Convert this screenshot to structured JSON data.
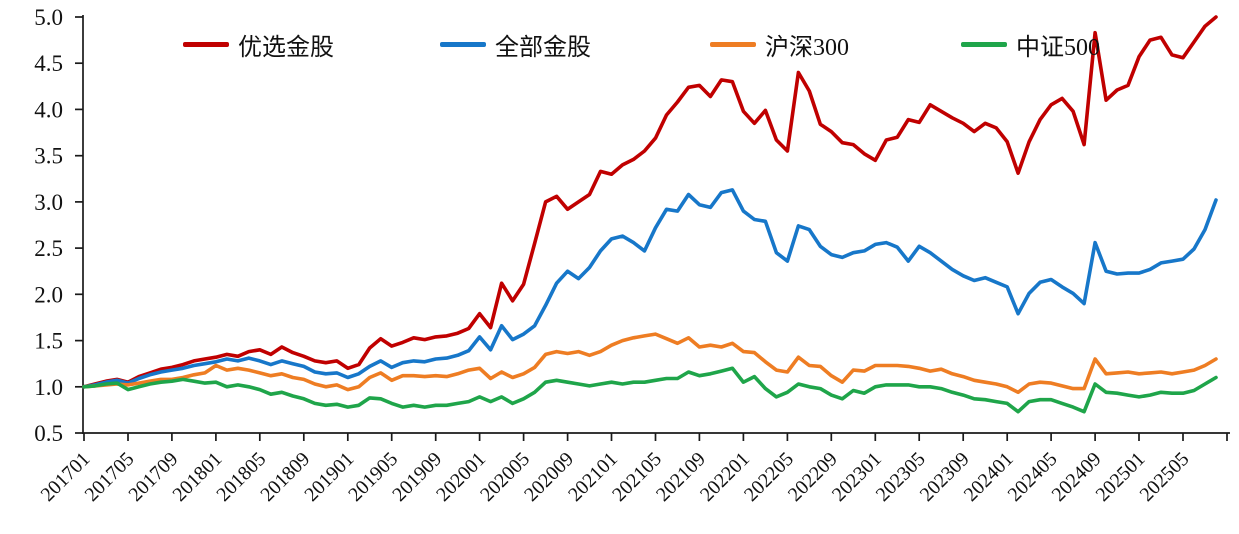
{
  "chart_data": {
    "type": "line",
    "title": "",
    "xlabel": "",
    "ylabel": "",
    "ylim": [
      0.5,
      5.0
    ],
    "y_ticks": [
      0.5,
      1.0,
      1.5,
      2.0,
      2.5,
      3.0,
      3.5,
      4.0,
      4.5,
      5.0
    ],
    "grid": false,
    "legend_position": "top",
    "x_tick_labels": [
      "201701",
      "201705",
      "201709",
      "201801",
      "201805",
      "201809",
      "201901",
      "201905",
      "201909",
      "202001",
      "202005",
      "202009",
      "202101",
      "202105",
      "202109",
      "202201",
      "202205",
      "202209",
      "202301",
      "202305",
      "202309",
      "202401",
      "202405",
      "202409",
      "202501",
      "202505"
    ],
    "months": [
      "201701",
      "201702",
      "201703",
      "201704",
      "201705",
      "201706",
      "201707",
      "201708",
      "201709",
      "201710",
      "201711",
      "201712",
      "201801",
      "201802",
      "201803",
      "201804",
      "201805",
      "201806",
      "201807",
      "201808",
      "201809",
      "201810",
      "201811",
      "201812",
      "201901",
      "201902",
      "201903",
      "201904",
      "201905",
      "201906",
      "201907",
      "201908",
      "201909",
      "201910",
      "201911",
      "201912",
      "202001",
      "202002",
      "202003",
      "202004",
      "202005",
      "202006",
      "202007",
      "202008",
      "202009",
      "202010",
      "202011",
      "202012",
      "202101",
      "202102",
      "202103",
      "202104",
      "202105",
      "202106",
      "202107",
      "202108",
      "202109",
      "202110",
      "202111",
      "202112",
      "202201",
      "202202",
      "202203",
      "202204",
      "202205",
      "202206",
      "202207",
      "202208",
      "202209",
      "202210",
      "202211",
      "202212",
      "202301",
      "202302",
      "202303",
      "202304",
      "202305",
      "202306",
      "202307",
      "202308",
      "202309",
      "202310",
      "202311",
      "202312",
      "202401",
      "202402",
      "202403",
      "202404",
      "202405",
      "202406",
      "202407",
      "202408",
      "202409",
      "202410",
      "202411",
      "202412",
      "202501",
      "202502",
      "202503",
      "202504",
      "202505",
      "202506",
      "202507",
      "202508"
    ],
    "series": [
      {
        "name": "优选金股",
        "color": "#C00000",
        "values": [
          1.0,
          1.03,
          1.06,
          1.08,
          1.05,
          1.11,
          1.15,
          1.19,
          1.21,
          1.24,
          1.28,
          1.3,
          1.32,
          1.35,
          1.33,
          1.38,
          1.4,
          1.35,
          1.43,
          1.37,
          1.33,
          1.28,
          1.26,
          1.28,
          1.2,
          1.24,
          1.42,
          1.52,
          1.44,
          1.48,
          1.53,
          1.51,
          1.54,
          1.55,
          1.58,
          1.63,
          1.79,
          1.64,
          2.12,
          1.93,
          2.11,
          2.55,
          3.0,
          3.06,
          2.92,
          3.0,
          3.08,
          3.33,
          3.3,
          3.4,
          3.46,
          3.55,
          3.69,
          3.94,
          4.08,
          4.24,
          4.26,
          4.14,
          4.32,
          4.3,
          3.98,
          3.85,
          3.99,
          3.67,
          3.55,
          4.4,
          4.2,
          3.84,
          3.76,
          3.64,
          3.62,
          3.52,
          3.45,
          3.67,
          3.7,
          3.89,
          3.86,
          4.05,
          3.98,
          3.91,
          3.85,
          3.76,
          3.85,
          3.8,
          3.65,
          3.31,
          3.65,
          3.89,
          4.05,
          4.12,
          3.98,
          3.62,
          4.83,
          4.1,
          4.21,
          4.26,
          4.57,
          4.75,
          4.78,
          4.59,
          4.56,
          4.73,
          4.9,
          5.0
        ]
      },
      {
        "name": "全部金股",
        "color": "#1777C9",
        "values": [
          1.0,
          1.02,
          1.05,
          1.07,
          1.04,
          1.09,
          1.13,
          1.16,
          1.18,
          1.2,
          1.23,
          1.25,
          1.27,
          1.3,
          1.28,
          1.31,
          1.28,
          1.24,
          1.28,
          1.25,
          1.22,
          1.16,
          1.14,
          1.15,
          1.1,
          1.14,
          1.22,
          1.28,
          1.21,
          1.26,
          1.28,
          1.27,
          1.3,
          1.31,
          1.34,
          1.39,
          1.54,
          1.4,
          1.66,
          1.51,
          1.57,
          1.66,
          1.88,
          2.12,
          2.25,
          2.17,
          2.29,
          2.47,
          2.6,
          2.63,
          2.56,
          2.47,
          2.72,
          2.92,
          2.9,
          3.08,
          2.97,
          2.94,
          3.1,
          3.13,
          2.9,
          2.81,
          2.79,
          2.45,
          2.36,
          2.74,
          2.7,
          2.52,
          2.43,
          2.4,
          2.45,
          2.47,
          2.54,
          2.56,
          2.51,
          2.36,
          2.52,
          2.45,
          2.36,
          2.27,
          2.2,
          2.15,
          2.18,
          2.13,
          2.08,
          1.79,
          2.01,
          2.13,
          2.16,
          2.08,
          2.01,
          1.9,
          2.56,
          2.25,
          2.22,
          2.23,
          2.23,
          2.27,
          2.34,
          2.36,
          2.38,
          2.49,
          2.7,
          3.02
        ]
      },
      {
        "name": "沪深300",
        "color": "#EE7D23",
        "values": [
          1.0,
          1.01,
          1.02,
          1.03,
          1.02,
          1.04,
          1.06,
          1.08,
          1.08,
          1.1,
          1.13,
          1.15,
          1.23,
          1.18,
          1.2,
          1.18,
          1.15,
          1.12,
          1.14,
          1.1,
          1.08,
          1.03,
          1.0,
          1.02,
          0.97,
          1.0,
          1.1,
          1.15,
          1.07,
          1.12,
          1.12,
          1.11,
          1.12,
          1.11,
          1.14,
          1.18,
          1.2,
          1.09,
          1.16,
          1.1,
          1.14,
          1.21,
          1.35,
          1.38,
          1.36,
          1.38,
          1.34,
          1.38,
          1.45,
          1.5,
          1.53,
          1.55,
          1.57,
          1.52,
          1.47,
          1.53,
          1.43,
          1.45,
          1.43,
          1.47,
          1.38,
          1.37,
          1.27,
          1.18,
          1.16,
          1.32,
          1.23,
          1.22,
          1.12,
          1.05,
          1.18,
          1.17,
          1.23,
          1.23,
          1.23,
          1.22,
          1.2,
          1.17,
          1.19,
          1.14,
          1.11,
          1.07,
          1.05,
          1.03,
          1.0,
          0.94,
          1.03,
          1.05,
          1.04,
          1.01,
          0.98,
          0.98,
          1.3,
          1.14,
          1.15,
          1.16,
          1.14,
          1.15,
          1.16,
          1.14,
          1.16,
          1.18,
          1.23,
          1.3
        ]
      },
      {
        "name": "中证500",
        "color": "#1FA54A",
        "values": [
          1.0,
          1.01,
          1.03,
          1.04,
          0.97,
          1.0,
          1.03,
          1.05,
          1.06,
          1.08,
          1.06,
          1.04,
          1.05,
          1.0,
          1.02,
          1.0,
          0.97,
          0.92,
          0.94,
          0.9,
          0.87,
          0.82,
          0.8,
          0.81,
          0.78,
          0.8,
          0.88,
          0.87,
          0.82,
          0.78,
          0.8,
          0.78,
          0.8,
          0.8,
          0.82,
          0.84,
          0.89,
          0.84,
          0.89,
          0.82,
          0.87,
          0.94,
          1.05,
          1.07,
          1.05,
          1.03,
          1.01,
          1.03,
          1.05,
          1.03,
          1.05,
          1.05,
          1.07,
          1.09,
          1.09,
          1.16,
          1.12,
          1.14,
          1.17,
          1.2,
          1.05,
          1.11,
          0.98,
          0.89,
          0.94,
          1.03,
          1.0,
          0.98,
          0.91,
          0.87,
          0.96,
          0.93,
          1.0,
          1.02,
          1.02,
          1.02,
          1.0,
          1.0,
          0.98,
          0.94,
          0.91,
          0.87,
          0.86,
          0.84,
          0.82,
          0.73,
          0.84,
          0.86,
          0.86,
          0.82,
          0.78,
          0.73,
          1.03,
          0.94,
          0.93,
          0.91,
          0.89,
          0.91,
          0.94,
          0.93,
          0.93,
          0.96,
          1.03,
          1.1
        ]
      }
    ]
  }
}
